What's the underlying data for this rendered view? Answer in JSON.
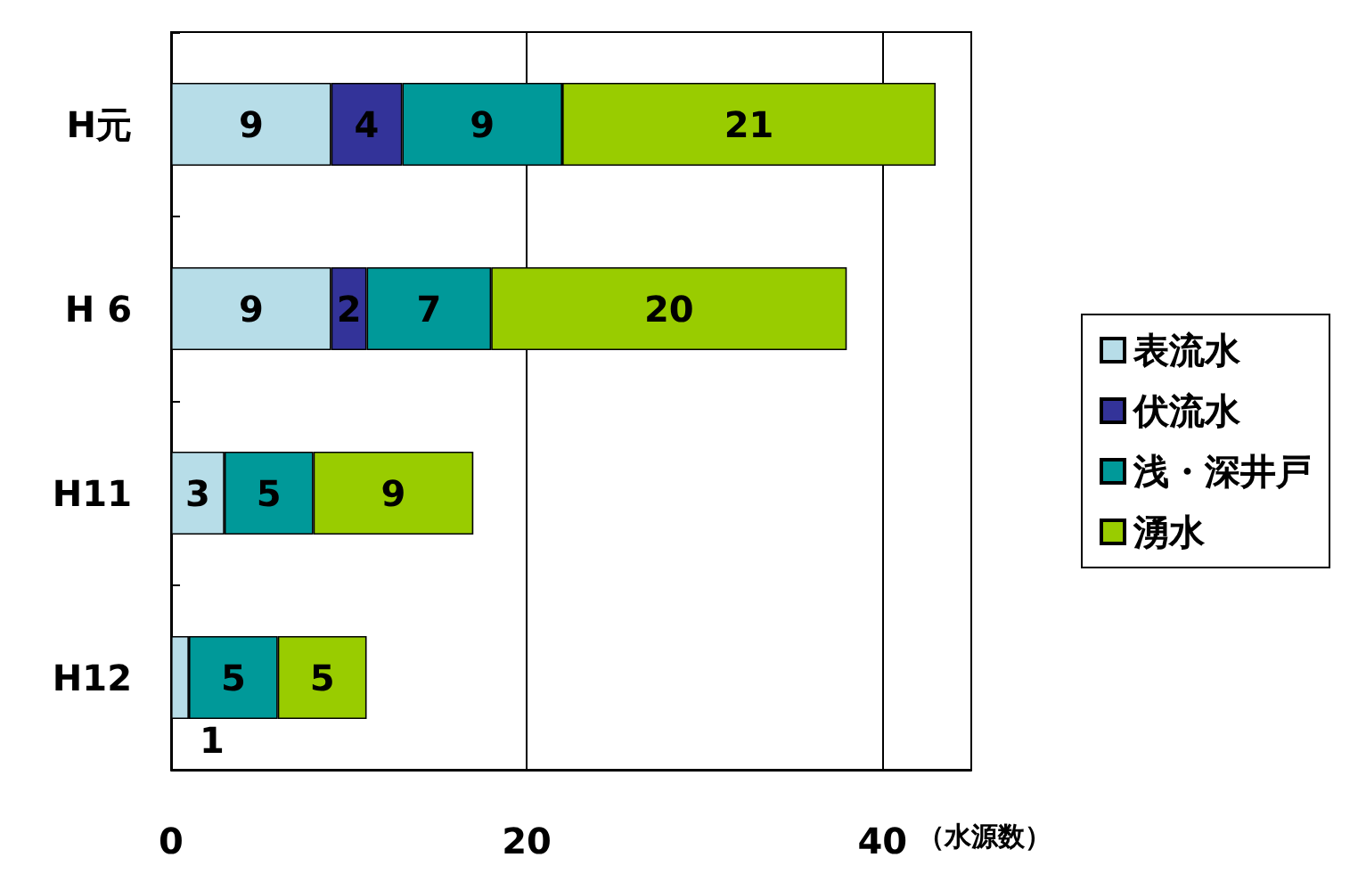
{
  "chart_data": {
    "type": "bar",
    "orientation": "horizontal",
    "stacked": true,
    "categories": [
      "H元",
      "H 6",
      "H11",
      "H12"
    ],
    "series": [
      {
        "name": "表流水",
        "color": "#b7dde8",
        "values": [
          9,
          9,
          3,
          1
        ]
      },
      {
        "name": "伏流水",
        "color": "#333399",
        "values": [
          4,
          2,
          null,
          null
        ]
      },
      {
        "name": "浅・深井戸",
        "color": "#009999",
        "values": [
          9,
          7,
          5,
          5
        ]
      },
      {
        "name": "湧水",
        "color": "#99cc00",
        "values": [
          21,
          20,
          9,
          5
        ]
      }
    ],
    "xlabel": "（水源数）",
    "xlim": [
      0,
      45
    ],
    "xticks": [
      0,
      20,
      40
    ],
    "grid": "x",
    "legend": "right",
    "data_labels": true
  }
}
